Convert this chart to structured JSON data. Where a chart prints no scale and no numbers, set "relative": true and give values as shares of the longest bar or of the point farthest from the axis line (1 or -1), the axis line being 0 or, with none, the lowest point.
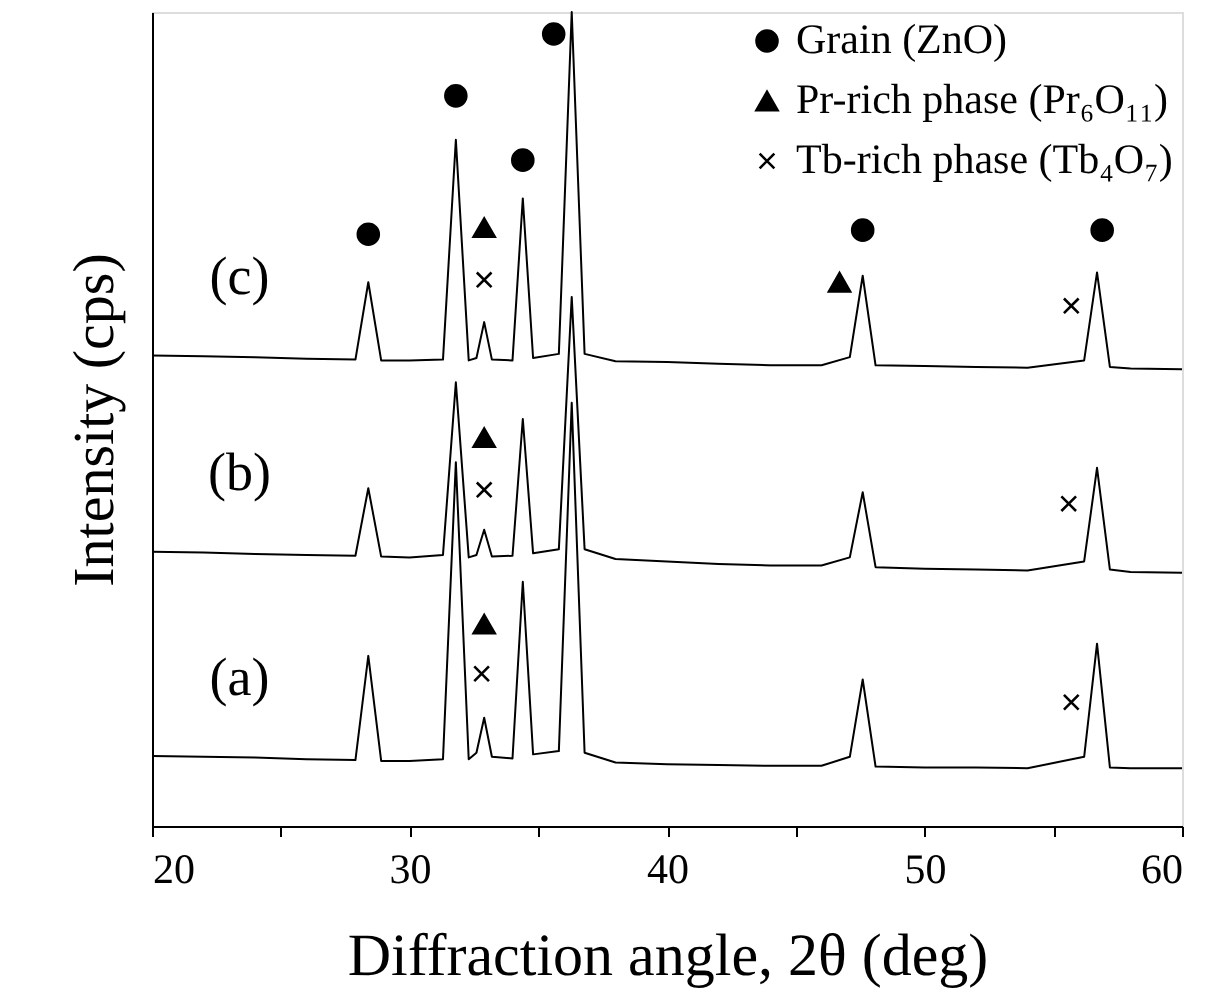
{
  "chart_data": {
    "type": "line",
    "relative": true,
    "xlabel": "Diffraction angle, 2θ (deg)",
    "ylabel": "Intensity (cps)",
    "xlim": [
      20,
      60
    ],
    "xticks": [
      20,
      {
        "value": 25,
        "label": null
      },
      30,
      {
        "value": 35,
        "label": null
      },
      40,
      {
        "value": 45,
        "label": null
      },
      50,
      {
        "value": 55,
        "label": null
      },
      60
    ],
    "grid": false,
    "legend": "top right",
    "line_style": "solid",
    "x": [
      20,
      22,
      24,
      26,
      27.9,
      28.4,
      28.9,
      30,
      31.3,
      31.8,
      32.3,
      32.6,
      32.9,
      33.2,
      34.0,
      34.4,
      34.8,
      35.8,
      36.3,
      36.8,
      38,
      40,
      42,
      44,
      46,
      47.1,
      47.6,
      48.1,
      50,
      52,
      54,
      56.2,
      56.7,
      57.2,
      58,
      60
    ],
    "series": [
      {
        "name": "(c)",
        "color": "#000000",
        "values": [
          0.578,
          0.577,
          0.576,
          0.574,
          0.573,
          0.668,
          0.572,
          0.572,
          0.573,
          0.843,
          0.572,
          0.575,
          0.619,
          0.573,
          0.572,
          0.771,
          0.575,
          0.58,
          1.0,
          0.58,
          0.571,
          0.57,
          0.568,
          0.566,
          0.566,
          0.576,
          0.676,
          0.566,
          0.565,
          0.564,
          0.563,
          0.572,
          0.68,
          0.564,
          0.562,
          0.561
        ]
      },
      {
        "name": "(b)",
        "color": "#000000",
        "values": [
          0.337,
          0.336,
          0.334,
          0.333,
          0.332,
          0.415,
          0.331,
          0.33,
          0.333,
          0.545,
          0.33,
          0.333,
          0.364,
          0.331,
          0.332,
          0.5,
          0.335,
          0.34,
          0.65,
          0.34,
          0.328,
          0.325,
          0.322,
          0.32,
          0.32,
          0.33,
          0.41,
          0.318,
          0.316,
          0.315,
          0.314,
          0.325,
          0.44,
          0.315,
          0.312,
          0.311
        ]
      },
      {
        "name": "(a)",
        "color": "#000000",
        "values": [
          0.086,
          0.085,
          0.084,
          0.082,
          0.081,
          0.209,
          0.08,
          0.08,
          0.082,
          0.447,
          0.082,
          0.09,
          0.133,
          0.085,
          0.083,
          0.3,
          0.088,
          0.092,
          0.52,
          0.09,
          0.078,
          0.076,
          0.075,
          0.074,
          0.074,
          0.085,
          0.18,
          0.073,
          0.072,
          0.072,
          0.071,
          0.085,
          0.224,
          0.072,
          0.071,
          0.071
        ]
      },
      {
        "name": "Grain (ZnO)",
        "type": "scatter",
        "marker": "circle",
        "color": "#000000",
        "x": [
          28.4,
          31.8,
          34.4,
          35.6,
          47.6,
          56.9
        ],
        "values": [
          0.727,
          0.897,
          0.818,
          0.973,
          0.732,
          0.732
        ]
      },
      {
        "name": "Pr-rich phase (Pr₆O₁₁)",
        "type": "scatter",
        "marker": "triangle",
        "color": "#000000",
        "x": [
          32.9,
          46.7,
          32.9,
          32.9
        ],
        "values": [
          0.735,
          0.668,
          0.477,
          0.248
        ]
      },
      {
        "name": "Tb-rich phase (Tb₄O₇)",
        "type": "scatter",
        "marker": "cross",
        "color": "#000000",
        "x": [
          32.9,
          55.7,
          32.9,
          55.6,
          32.8,
          55.7
        ],
        "values": [
          0.671,
          0.639,
          0.413,
          0.396,
          0.187,
          0.152
        ]
      }
    ]
  }
}
